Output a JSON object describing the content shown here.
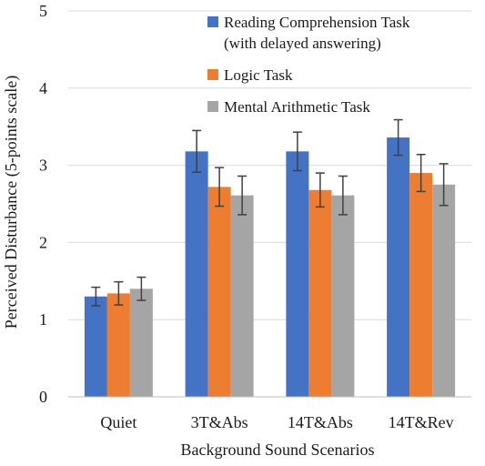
{
  "chart_data": {
    "type": "bar",
    "title": "",
    "xlabel": "Background Sound Scenarios",
    "ylabel": "Perceived Disturbance (5-points scale)",
    "ylim": [
      0,
      5
    ],
    "yticks": [
      "0",
      "1",
      "2",
      "3",
      "4",
      "5"
    ],
    "categories": [
      "Quiet",
      "3T&Abs",
      "14T&Abs",
      "14T&Rev"
    ],
    "grid": true,
    "legend_position": "top-right",
    "error_bars": true,
    "series": [
      {
        "name_lines": [
          "Reading Comprehension Task",
          "(with delayed answering)"
        ],
        "color": "#4472C4",
        "values": [
          1.3,
          3.18,
          3.18,
          3.36
        ],
        "errors": [
          0.12,
          0.27,
          0.25,
          0.23
        ]
      },
      {
        "name_lines": [
          "Logic Task"
        ],
        "color": "#ED7D31",
        "values": [
          1.34,
          2.72,
          2.68,
          2.9
        ],
        "errors": [
          0.15,
          0.25,
          0.22,
          0.24
        ]
      },
      {
        "name_lines": [
          "Mental Arithmetic Task"
        ],
        "color": "#A5A5A5",
        "values": [
          1.4,
          2.61,
          2.61,
          2.75
        ],
        "errors": [
          0.15,
          0.25,
          0.25,
          0.27
        ]
      }
    ]
  }
}
